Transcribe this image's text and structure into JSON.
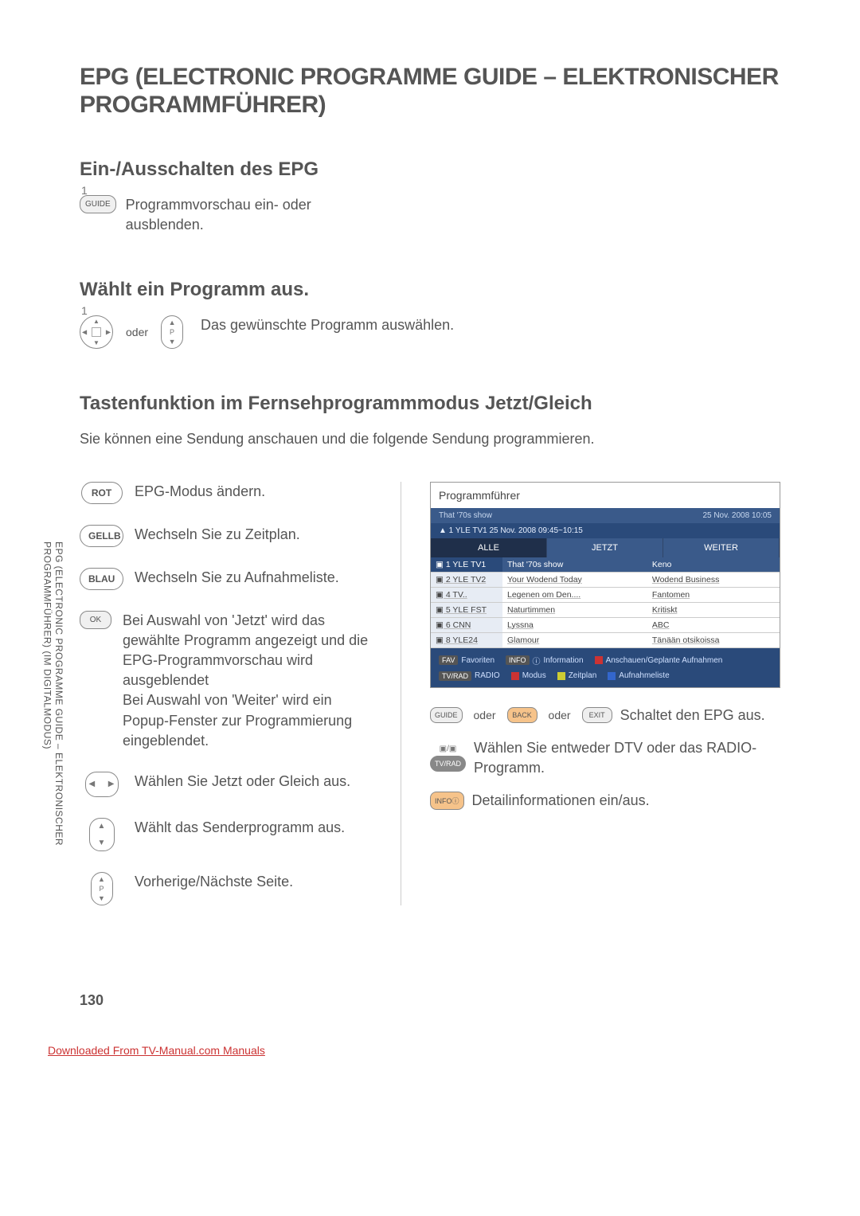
{
  "title": "EPG (ELECTRONIC PROGRAMME GUIDE – ELEKTRONISCHER PROGRAMMFÜHRER)",
  "side_tab_line1": "EPG (ELECTRONIC PROGRAMME GUIDE – ELEKTRONISCHER",
  "side_tab_line2": "PROGRAMMFÜHRER) (IM DIGITALMODUS)",
  "page_number": "130",
  "footer_link": "Downloaded From TV-Manual.com Manuals",
  "section1": {
    "heading": "Ein-/Ausschalten des EPG",
    "step": "1",
    "btn": "GUIDE",
    "text": "Programmvorschau ein- oder ausblenden."
  },
  "section2": {
    "heading": "Wählt ein Programm aus.",
    "step": "1",
    "oder": "oder",
    "text": "Das gewünschte Programm auswählen.",
    "pch_label": "P"
  },
  "section3": {
    "heading": "Tastenfunktion im Fernsehprogrammmodus Jetzt/Gleich",
    "intro": "Sie können eine Sendung anschauen und die folgende Sendung programmieren.",
    "f_rot": {
      "label": "ROT",
      "text": "EPG-Modus ändern."
    },
    "f_gelb": {
      "label": "GELLB",
      "text": "Wechseln Sie zu Zeitplan."
    },
    "f_blau": {
      "label": "BLAU",
      "text": "Wechseln Sie zu Aufnahmeliste."
    },
    "f_ok": {
      "label": "OK",
      "text": "Bei Auswahl von 'Jetzt' wird das gewählte Programm angezeigt und die EPG-Programmvorschau wird ausgebendet\nBei Auswahl von 'Weiter' wird ein Popup-Fenster zur Programmierung eingeblendet."
    },
    "f_ok_line1": "Bei Auswahl von 'Jetzt' wird das gewählte Programm angezeigt und die EPG-Programmvorschau wird ausgeblendet",
    "f_ok_line2": "Bei Auswahl von 'Weiter' wird ein Popup-Fenster zur Programmierung eingeblendet.",
    "f_lr": "Wählen Sie Jetzt oder Gleich aus.",
    "f_ud": "Wählt das Senderprogramm aus.",
    "f_pch": "Vorherige/Nächste Seite.",
    "r_off": {
      "btn1": "GUIDE",
      "oder": "oder",
      "btn2": "BACK",
      "btn3": "EXIT",
      "text": "Schaltet den EPG aus."
    },
    "r_tvrad": {
      "btn_top": "▣/▣",
      "btn": "TV/RAD",
      "text": "Wählen Sie entweder DTV oder das RADIO-Programm."
    },
    "r_info": {
      "btn": "INFOⓘ",
      "text": "Detailinformationen ein/aus."
    }
  },
  "epg": {
    "title": "Programmführer",
    "band1_left": "That '70s show",
    "band1_right": "25 Nov. 2008 10:05",
    "band2": "▲ 1 YLE TV1 25 Nov. 2008 09:45~10:15",
    "tab1": "ALLE",
    "tab2": "JETZT",
    "tab3": "WEITER",
    "rows": [
      {
        "ch": "▣ 1  YLE TV1",
        "now": "That '70s show",
        "next": "Keno",
        "hl": true
      },
      {
        "ch": "▣ 2  YLE TV2",
        "now": "Your Wodend Today",
        "next": "Wodend Business"
      },
      {
        "ch": "▣ 4  TV..",
        "now": "Legenen om Den....",
        "next": "Fantomen"
      },
      {
        "ch": "▣ 5  YLE FST",
        "now": "Naturtimmen",
        "next": "Kritiskt"
      },
      {
        "ch": "▣ 6  CNN",
        "now": "Lyssna",
        "next": "ABC"
      },
      {
        "ch": "▣ 8  YLE24",
        "now": "Glamour",
        "next": "Tänään otsikoissa"
      }
    ],
    "legend": {
      "fav": "FAV",
      "fav_txt": "Favoriten",
      "info": "INFO",
      "info_i": "ⓘ",
      "info_txt": "Information",
      "rec": "Anschauen/Geplante Aufnahmen",
      "tvrad": "TV/RAD",
      "tvrad_txt": "RADIO",
      "modus": "Modus",
      "zeit": "Zeitplan",
      "aufn": "Aufnahmeliste"
    }
  }
}
